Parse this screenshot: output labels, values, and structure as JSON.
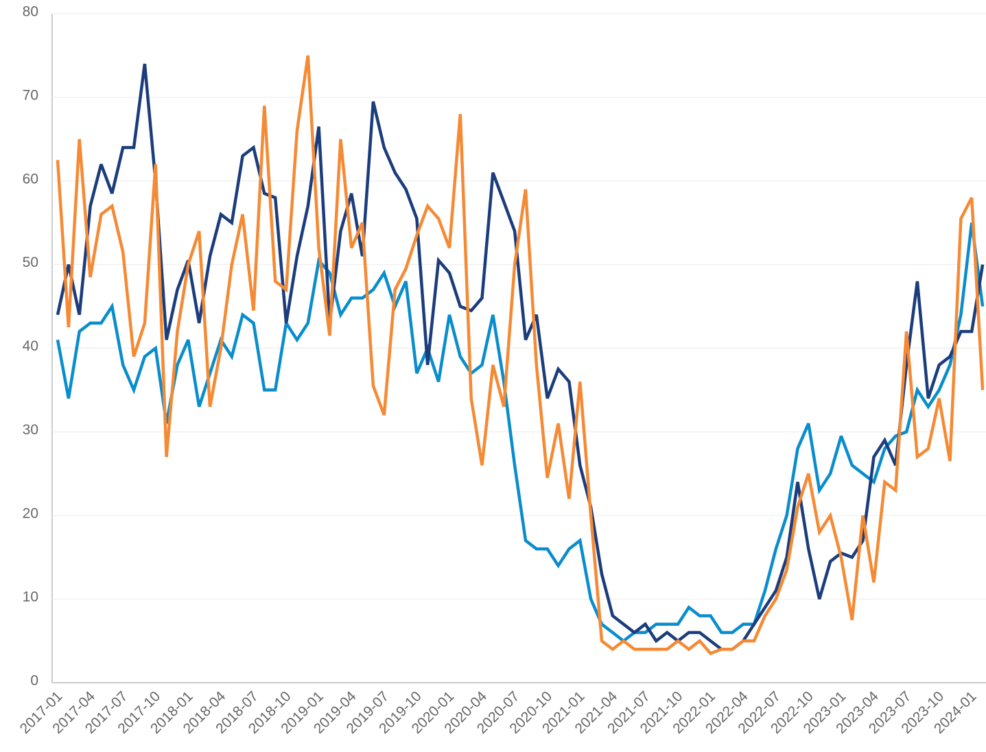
{
  "chart_data": {
    "type": "line",
    "categories": [
      "2017-01",
      null,
      null,
      "2017-04",
      null,
      null,
      "2017-07",
      null,
      null,
      "2017-10",
      null,
      null,
      "2018-01",
      null,
      null,
      "2018-04",
      null,
      null,
      "2018-07",
      null,
      null,
      "2018-10",
      null,
      null,
      "2019-01",
      null,
      null,
      "2019-04",
      null,
      null,
      "2019-07",
      null,
      null,
      "2019-10",
      null,
      null,
      "2020-01",
      null,
      null,
      "2020-04",
      null,
      null,
      "2020-07",
      null,
      null,
      "2020-10",
      null,
      null,
      "2021-01",
      null,
      null,
      "2021-04",
      null,
      null,
      "2021-07",
      null,
      null,
      "2021-10",
      null,
      null,
      "2022-01",
      null,
      null,
      "2022-04",
      null,
      null,
      "2022-07",
      null,
      null,
      "2022-10",
      null,
      null,
      "2023-01",
      null,
      null,
      "2023-04",
      null,
      null,
      "2023-07",
      null,
      null,
      "2023-10",
      null,
      null,
      "2024-01",
      null
    ],
    "series": [
      {
        "color": "#0a8dcc",
        "values": [
          41,
          34,
          42,
          43,
          43,
          45,
          38,
          35,
          39,
          40,
          31,
          38,
          41,
          33,
          37,
          41,
          39,
          44,
          43,
          35,
          35,
          43,
          41,
          43,
          50.5,
          49,
          44,
          46,
          46,
          47,
          49,
          45,
          48,
          37,
          40,
          36,
          44,
          39,
          37,
          38,
          44,
          36,
          26,
          17,
          16,
          16,
          14,
          16,
          17,
          10,
          7,
          6,
          5,
          6,
          6,
          7,
          7,
          7,
          9,
          8,
          8,
          6,
          6,
          7,
          7,
          11,
          16,
          20,
          28,
          31,
          23,
          25,
          29.5,
          26,
          25,
          24,
          28,
          29.5,
          30,
          35,
          33,
          35,
          38,
          44,
          55,
          45
        ]
      },
      {
        "color": "#1c3d7c",
        "values": [
          44,
          50,
          44,
          57,
          62,
          58.5,
          64,
          64,
          74,
          60,
          41,
          47,
          50.5,
          43,
          51,
          56,
          55,
          63,
          64,
          58.5,
          58,
          43,
          51,
          57,
          66.5,
          43,
          54,
          58.5,
          51,
          69.5,
          64,
          61,
          59,
          55.5,
          38,
          50.5,
          49,
          45,
          44.5,
          46,
          61,
          57.5,
          54,
          41,
          44,
          34,
          37.5,
          36,
          26,
          21,
          13,
          8,
          7,
          6,
          7,
          5,
          6,
          5,
          6,
          6,
          5,
          4,
          4,
          5,
          7,
          9,
          11,
          15,
          24,
          16,
          10,
          14.5,
          15.5,
          15,
          17,
          27,
          29,
          26,
          38,
          48,
          34,
          38,
          39,
          42,
          42,
          50
        ]
      },
      {
        "color": "#f58a35",
        "values": [
          62.5,
          42.5,
          65,
          48.5,
          56,
          57,
          51.5,
          39,
          43,
          62,
          27,
          42,
          50,
          54,
          33,
          40,
          50,
          56,
          44.5,
          69,
          48,
          47,
          66,
          75,
          52,
          41.5,
          65,
          52,
          55,
          35.5,
          32,
          47,
          49.5,
          53.5,
          57,
          55.5,
          52,
          68,
          34,
          26,
          38,
          33,
          50,
          59,
          38,
          24.5,
          31,
          22,
          36,
          20,
          5,
          4,
          5,
          4,
          4,
          4,
          4,
          5,
          4,
          5,
          3.5,
          4,
          4,
          5,
          5,
          8,
          10,
          13.5,
          21,
          25,
          18,
          20,
          15,
          7.5,
          20,
          12,
          24,
          23,
          42,
          27,
          28,
          34,
          26.5,
          55.5,
          58,
          35
        ]
      }
    ],
    "ylim": [
      0,
      80
    ],
    "yticks": [
      0,
      10,
      20,
      30,
      40,
      50,
      60,
      70,
      80
    ],
    "grid": true
  }
}
